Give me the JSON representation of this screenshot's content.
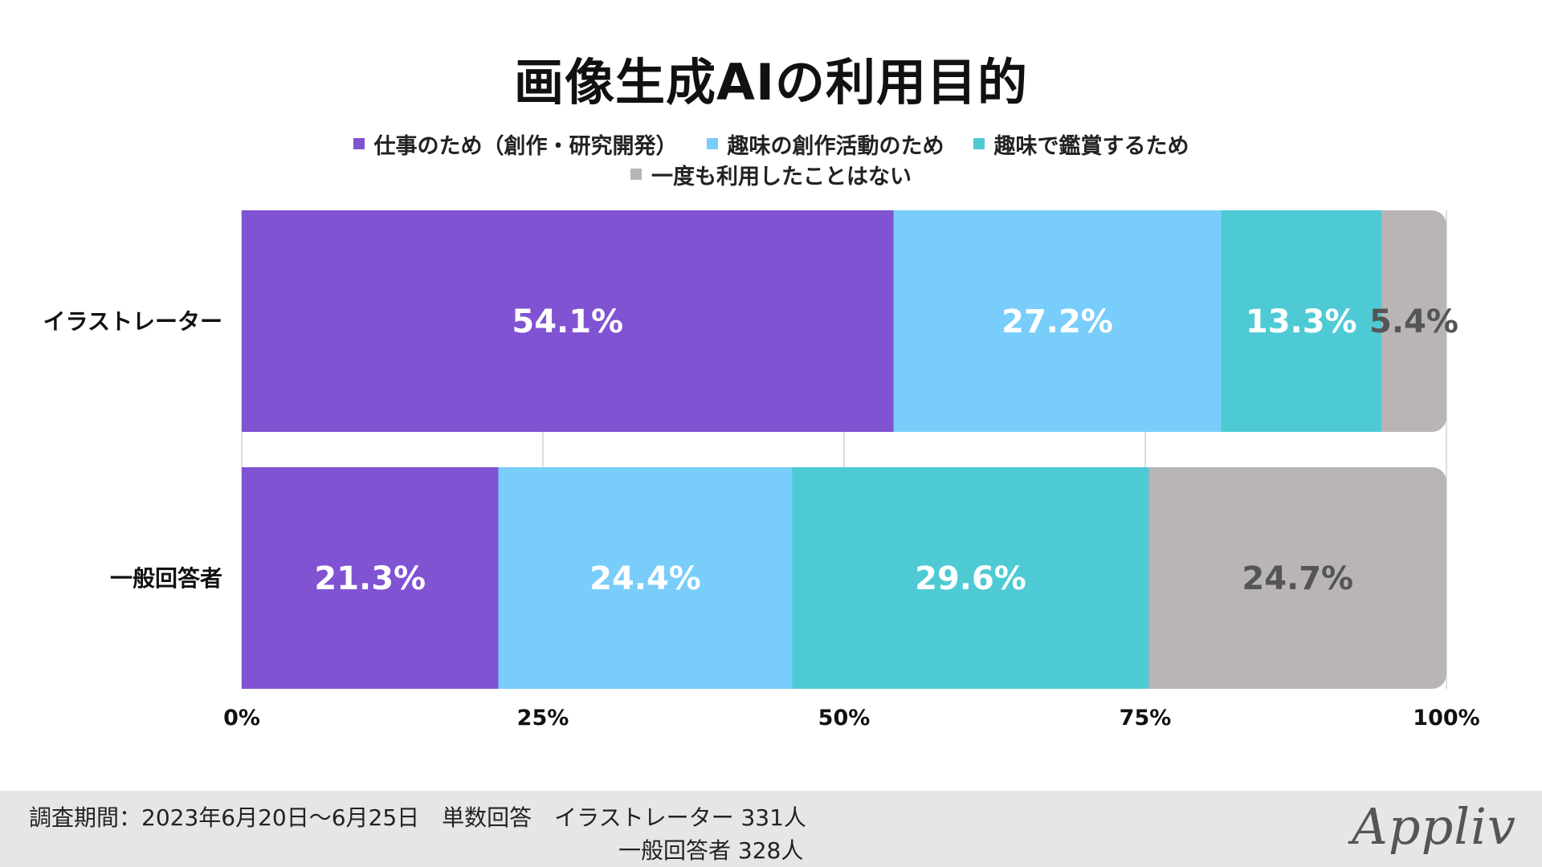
{
  "chart_data": {
    "type": "bar",
    "orientation": "horizontal",
    "stacked": true,
    "title": "画像生成AIの利用目的",
    "categories": [
      "イラストレーター",
      "一般回答者"
    ],
    "series": [
      {
        "name": "仕事のため（創作・研究開発）",
        "color": "#8053d2",
        "label_color": "#ffffff",
        "values": [
          54.1,
          21.3
        ]
      },
      {
        "name": "趣味の創作活動のため",
        "color": "#79cdfb",
        "label_color": "#ffffff",
        "values": [
          27.2,
          24.4
        ]
      },
      {
        "name": "趣味で鑑賞するため",
        "color": "#4ecad4",
        "label_color": "#ffffff",
        "values": [
          13.3,
          29.6
        ]
      },
      {
        "name": "一度も利用したことはない",
        "color": "#b8b5b4",
        "label_color": "#555555",
        "values": [
          5.4,
          24.7
        ]
      }
    ],
    "value_suffix": "%",
    "xlim": [
      0,
      100
    ],
    "xticks": [
      "0%",
      "25%",
      "50%",
      "75%",
      "100%"
    ],
    "legend_position": "top",
    "grid": "vertical"
  },
  "footer": {
    "line1": "調査期間：2023年6月20日〜6月25日　単数回答　イラストレーター 331人",
    "line2": "一般回答者 328人"
  },
  "logo": "Appliv"
}
